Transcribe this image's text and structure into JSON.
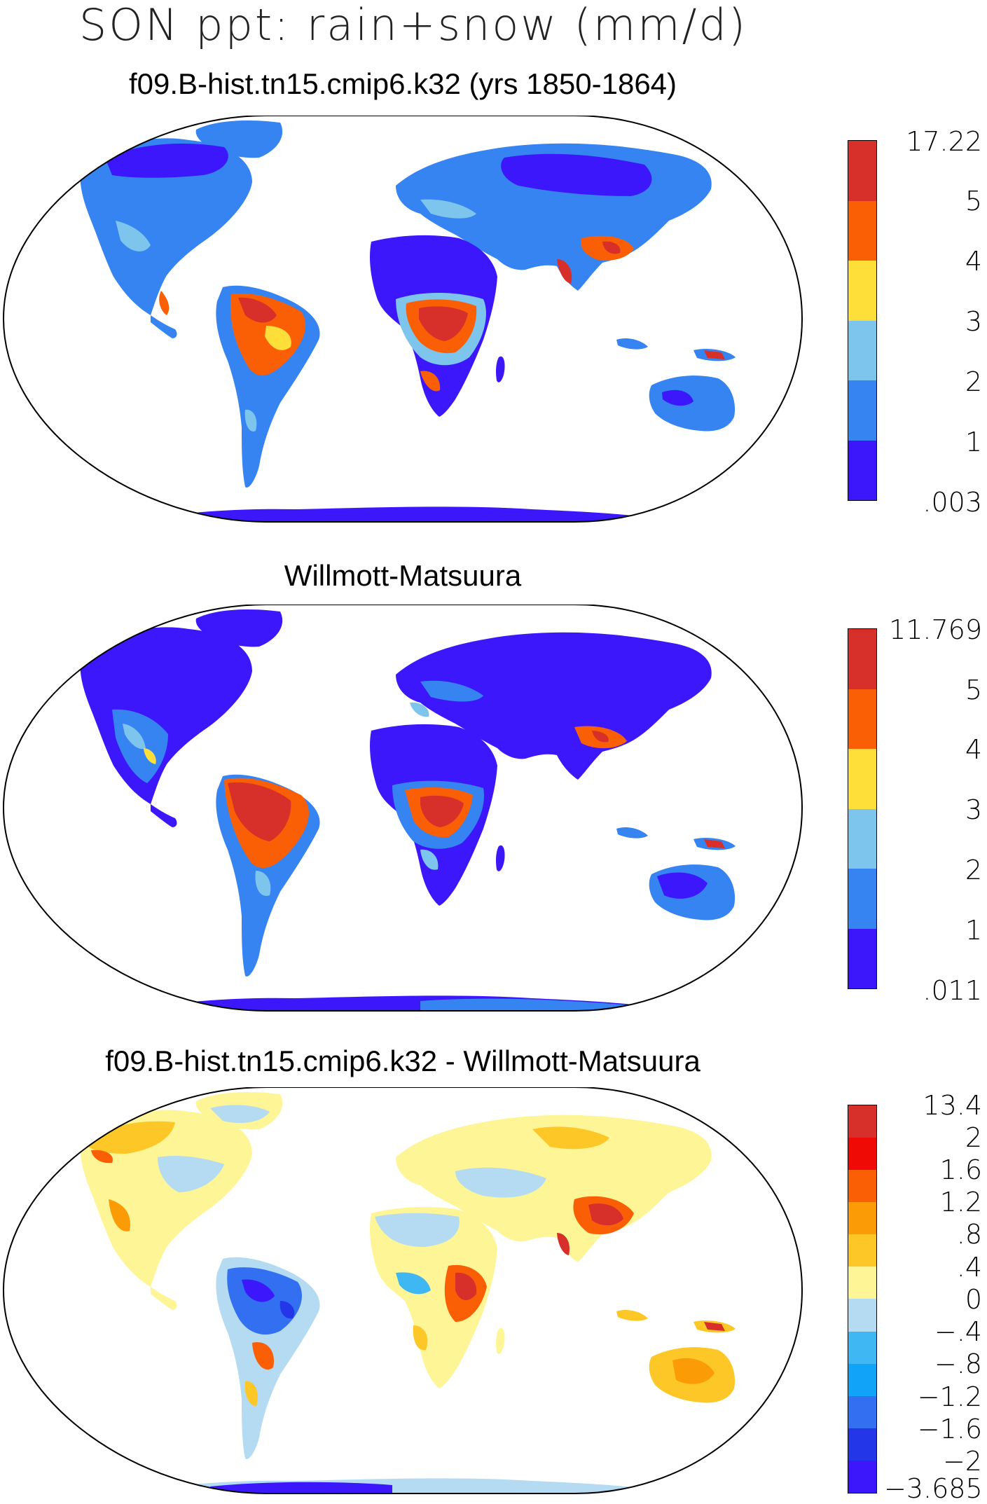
{
  "figure": {
    "title": "SON ppt: rain+snow (mm/d)",
    "panels": [
      {
        "title": "f09.B-hist.tn15.cmip6.k32 (yrs 1850-1864)",
        "colorbar": {
          "labels": [
            "17.22",
            "5",
            "4",
            "3",
            "2",
            "1",
            ".003"
          ],
          "colors": [
            "#d7302a",
            "#fb5f05",
            "#fedf3a",
            "#7dc5ec",
            "#3684f1",
            "#3c17fb"
          ]
        }
      },
      {
        "title": "Willmott-Matsuura",
        "colorbar": {
          "labels": [
            "11.769",
            "5",
            "4",
            "3",
            "2",
            "1",
            ".011"
          ],
          "colors": [
            "#d7302a",
            "#fb5f05",
            "#fedf3a",
            "#7dc5ec",
            "#3684f1",
            "#3c17fb"
          ]
        }
      },
      {
        "title": "f09.B-hist.tn15.cmip6.k32 - Willmott-Matsuura",
        "colorbar": {
          "labels": [
            "13.4",
            "2",
            "1.6",
            "1.2",
            ".8",
            ".4",
            "0",
            "−.4",
            "−.8",
            "−1.2",
            "−1.6",
            "−2",
            "−3.685"
          ],
          "colors": [
            "#d7302a",
            "#ef0a06",
            "#fb5f05",
            "#fb9b05",
            "#fdc827",
            "#fef597",
            "#b4dbf1",
            "#3fb7f2",
            "#11a3f8",
            "#3270f1",
            "#2336e8",
            "#3c17fb"
          ]
        }
      }
    ]
  }
}
